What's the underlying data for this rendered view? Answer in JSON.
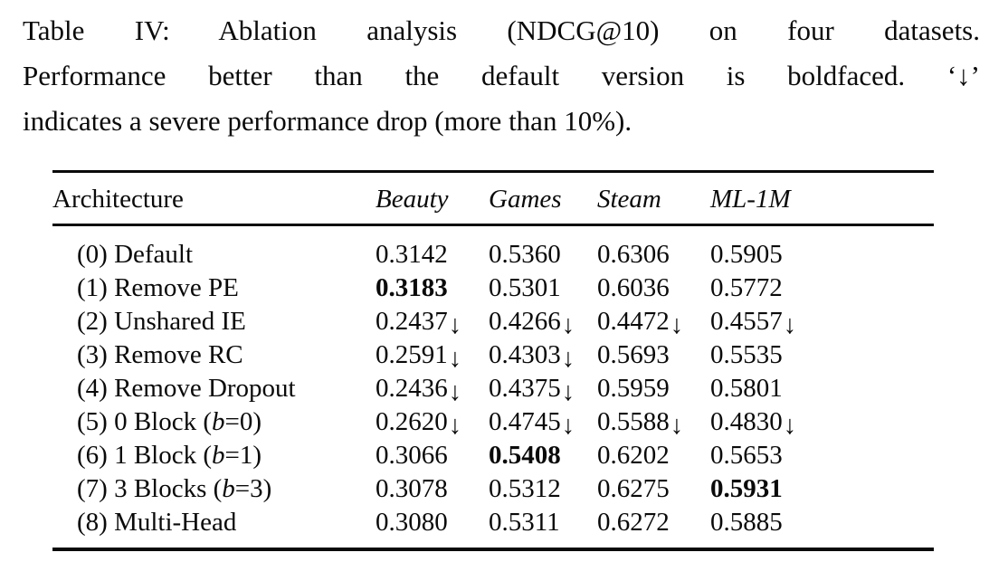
{
  "caption": {
    "lines": [
      "Table IV: Ablation analysis (NDCG@10) on four datasets.",
      "Performance better than the default version is boldfaced. ‘↓’",
      "indicates a severe performance drop (more than 10%)."
    ]
  },
  "table": {
    "title": "Ablation analysis (NDCG@10)",
    "metric": "NDCG@10",
    "drop_arrow": "↓",
    "columns": [
      "Architecture",
      "Beauty",
      "Games",
      "Steam",
      "ML-1M"
    ],
    "rows": [
      {
        "label": [
          "(0) Default"
        ],
        "values": [
          {
            "v": "0.3142"
          },
          {
            "v": "0.5360"
          },
          {
            "v": "0.6306"
          },
          {
            "v": "0.5905"
          }
        ]
      },
      {
        "label": [
          "(1) Remove PE"
        ],
        "values": [
          {
            "v": "0.3183",
            "bold": true
          },
          {
            "v": "0.5301"
          },
          {
            "v": "0.6036"
          },
          {
            "v": "0.5772"
          }
        ]
      },
      {
        "label": [
          "(2) Unshared IE"
        ],
        "values": [
          {
            "v": "0.2437",
            "drop": true
          },
          {
            "v": "0.4266",
            "drop": true
          },
          {
            "v": "0.4472",
            "drop": true
          },
          {
            "v": "0.4557",
            "drop": true
          }
        ]
      },
      {
        "label": [
          "(3) Remove RC"
        ],
        "values": [
          {
            "v": "0.2591",
            "drop": true
          },
          {
            "v": "0.4303",
            "drop": true
          },
          {
            "v": "0.5693"
          },
          {
            "v": "0.5535"
          }
        ]
      },
      {
        "label": [
          "(4) Remove Dropout"
        ],
        "values": [
          {
            "v": "0.2436",
            "drop": true
          },
          {
            "v": "0.4375",
            "drop": true
          },
          {
            "v": "0.5959"
          },
          {
            "v": "0.5801"
          }
        ]
      },
      {
        "label": [
          "(5) 0 Block (",
          {
            "i": "b"
          },
          "=0)"
        ],
        "values": [
          {
            "v": "0.2620",
            "drop": true
          },
          {
            "v": "0.4745",
            "drop": true
          },
          {
            "v": "0.5588",
            "drop": true
          },
          {
            "v": "0.4830",
            "drop": true
          }
        ]
      },
      {
        "label": [
          "(6) 1 Block (",
          {
            "i": "b"
          },
          "=1)"
        ],
        "values": [
          {
            "v": "0.3066"
          },
          {
            "v": "0.5408",
            "bold": true
          },
          {
            "v": "0.6202"
          },
          {
            "v": "0.5653"
          }
        ]
      },
      {
        "label": [
          "(7) 3 Blocks (",
          {
            "i": "b"
          },
          "=3)"
        ],
        "values": [
          {
            "v": "0.3078"
          },
          {
            "v": "0.5312"
          },
          {
            "v": "0.6275"
          },
          {
            "v": "0.5931",
            "bold": true
          }
        ]
      },
      {
        "label": [
          "(8) Multi-Head"
        ],
        "values": [
          {
            "v": "0.3080"
          },
          {
            "v": "0.5311"
          },
          {
            "v": "0.6272"
          },
          {
            "v": "0.5885"
          }
        ]
      }
    ]
  },
  "colors": {
    "text": "#0a0a0a",
    "background": "#ffffff",
    "rule": "#0a0a0a"
  }
}
